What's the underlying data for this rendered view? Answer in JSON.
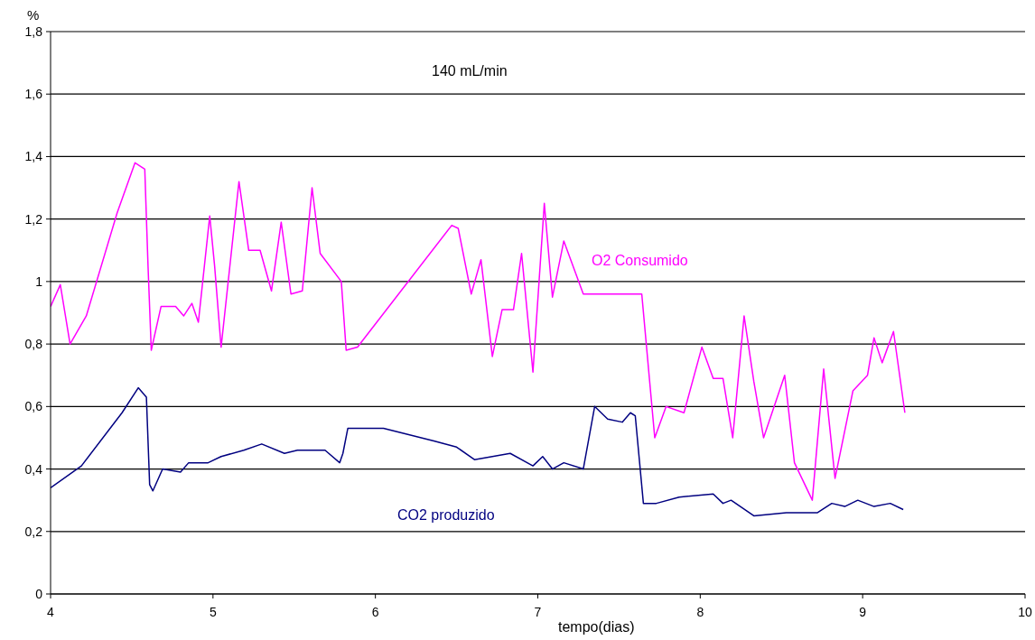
{
  "chart_data": {
    "type": "line",
    "ylabel": "%",
    "xlabel": "tempo(dias)",
    "annotations": [
      "140 mL/min"
    ],
    "xlim": [
      4,
      10
    ],
    "xticks": [
      4,
      5,
      6,
      7,
      8,
      9,
      10
    ],
    "ylim": [
      0,
      1.8
    ],
    "yticks": [
      0,
      {
        "value": 0.2,
        "label": "0,2"
      },
      {
        "value": 0.4,
        "label": "0,4"
      },
      {
        "value": 0.6,
        "label": "0,6"
      },
      {
        "value": 0.8,
        "label": "0,8"
      },
      1,
      {
        "value": 1.2,
        "label": "1,2"
      },
      {
        "value": 1.4,
        "label": "1,4"
      },
      {
        "value": 1.6,
        "label": "1,6"
      },
      {
        "value": 1.8,
        "label": "1,8"
      }
    ],
    "grid": "y",
    "legend": false,
    "marker": "none",
    "line_style": "solid",
    "series": [
      {
        "name": "O2 Consumido",
        "color": "#ff00ff",
        "x": [
          4.0,
          4.06,
          4.12,
          4.22,
          4.41,
          4.52,
          4.58,
          4.6,
          4.62,
          4.68,
          4.77,
          4.82,
          4.87,
          4.91,
          4.98,
          5.01,
          5.05,
          5.16,
          5.22,
          5.29,
          5.36,
          5.42,
          5.48,
          5.55,
          5.61,
          5.66,
          5.79,
          5.82,
          5.89,
          6.47,
          6.51,
          6.59,
          6.65,
          6.72,
          6.78,
          6.85,
          6.9,
          6.97,
          7.04,
          7.09,
          7.16,
          7.28,
          7.64,
          7.72,
          7.79,
          7.9,
          8.01,
          8.08,
          8.14,
          8.2,
          8.27,
          8.33,
          8.39,
          8.52,
          8.58,
          8.69,
          8.76,
          8.83,
          8.94,
          9.03,
          9.07,
          9.12,
          9.19,
          9.26
        ],
        "values": [
          0.92,
          0.99,
          0.8,
          0.89,
          1.22,
          1.38,
          1.36,
          1.05,
          0.78,
          0.92,
          0.92,
          0.89,
          0.93,
          0.87,
          1.21,
          1.05,
          0.79,
          1.32,
          1.1,
          1.1,
          0.97,
          1.19,
          0.96,
          0.97,
          1.3,
          1.09,
          1.0,
          0.78,
          0.79,
          1.18,
          1.17,
          0.96,
          1.07,
          0.76,
          0.91,
          0.91,
          1.09,
          0.71,
          1.25,
          0.95,
          1.13,
          0.96,
          0.96,
          0.5,
          0.6,
          0.58,
          0.79,
          0.69,
          0.69,
          0.5,
          0.89,
          0.68,
          0.5,
          0.7,
          0.42,
          0.3,
          0.72,
          0.37,
          0.65,
          0.7,
          0.82,
          0.74,
          0.84,
          0.58
        ]
      },
      {
        "name": "CO2 produzido",
        "color": "#000080",
        "x": [
          4.0,
          4.19,
          4.44,
          4.54,
          4.59,
          4.61,
          4.63,
          4.69,
          4.8,
          4.85,
          4.97,
          5.05,
          5.19,
          5.3,
          5.44,
          5.52,
          5.69,
          5.78,
          5.8,
          5.83,
          6.05,
          6.36,
          6.5,
          6.61,
          6.72,
          6.83,
          6.97,
          7.03,
          7.09,
          7.16,
          7.28,
          7.35,
          7.43,
          7.52,
          7.57,
          7.6,
          7.65,
          7.73,
          7.87,
          8.08,
          8.14,
          8.19,
          8.33,
          8.53,
          8.72,
          8.81,
          8.89,
          8.97,
          9.07,
          9.17,
          9.25
        ],
        "values": [
          0.34,
          0.41,
          0.58,
          0.66,
          0.63,
          0.35,
          0.33,
          0.4,
          0.39,
          0.42,
          0.42,
          0.44,
          0.46,
          0.48,
          0.45,
          0.46,
          0.46,
          0.42,
          0.45,
          0.53,
          0.53,
          0.49,
          0.47,
          0.43,
          0.44,
          0.45,
          0.41,
          0.44,
          0.4,
          0.42,
          0.4,
          0.6,
          0.56,
          0.55,
          0.58,
          0.57,
          0.29,
          0.29,
          0.31,
          0.32,
          0.29,
          0.3,
          0.25,
          0.26,
          0.26,
          0.29,
          0.28,
          0.3,
          0.28,
          0.29,
          0.27
        ]
      }
    ]
  }
}
